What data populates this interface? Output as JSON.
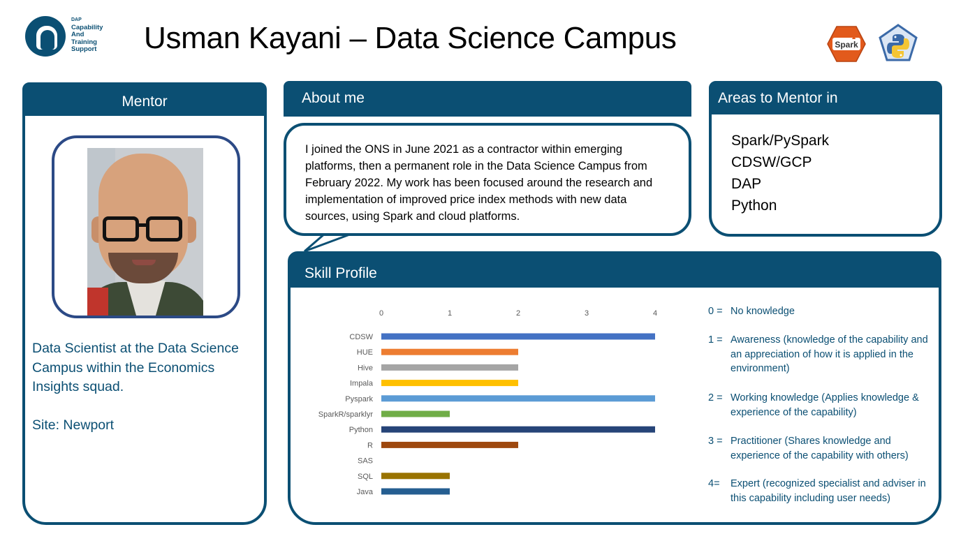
{
  "logo": {
    "lines": [
      "DAP",
      "Capability",
      "And",
      "Training",
      "Support"
    ]
  },
  "title": "Usman Kayani – Data Science Campus",
  "icons": {
    "spark": "spark-icon",
    "spark_text": "Spark",
    "python": "python-icon"
  },
  "mentor": {
    "header": "Mentor",
    "description": "Data Scientist at the Data Science Campus within the Economics Insights squad.",
    "site": "Site: Newport"
  },
  "about": {
    "header": "About me",
    "text": "I joined the ONS in June 2021 as a contractor within emerging platforms, then a permanent role in the Data Science Campus from February 2022. My work has been focused around the research and implementation of improved price index methods with new data sources, using Spark and cloud platforms."
  },
  "areas": {
    "header": "Areas to Mentor in",
    "items": [
      "Spark/PySpark",
      "CDSW/GCP",
      "DAP",
      "Python"
    ]
  },
  "skill": {
    "header": "Skill Profile",
    "legend": [
      {
        "num": "0 =",
        "desc": "No knowledge"
      },
      {
        "num": "1 =",
        "desc": "Awareness (knowledge of the capability and an appreciation of how it is applied in the environment)"
      },
      {
        "num": "2 =",
        "desc": "Working knowledge (Applies knowledge & experience of the capability)"
      },
      {
        "num": "3 =",
        "desc": "Practitioner (Shares knowledge and experience of the capability with others)"
      },
      {
        "num": "4=",
        "desc": "Expert (recognized specialist and adviser in this capability including user needs)"
      }
    ]
  },
  "chart_data": {
    "type": "bar",
    "orientation": "horizontal",
    "categories": [
      "CDSW",
      "HUE",
      "Hive",
      "Impala",
      "Pyspark",
      "SparkR/sparklyr",
      "Python",
      "R",
      "SAS",
      "SQL",
      "Java"
    ],
    "values": [
      4,
      2,
      2,
      2,
      4,
      1,
      4,
      2,
      0,
      1,
      1
    ],
    "colors": [
      "#4472c4",
      "#ed7d31",
      "#a5a5a5",
      "#ffc000",
      "#5b9bd5",
      "#70ad47",
      "#264478",
      "#9e480e",
      "#636363",
      "#997300",
      "#255e91"
    ],
    "xlim": [
      0,
      4
    ],
    "xticks": [
      0,
      1,
      2,
      3,
      4
    ],
    "grid": false
  }
}
